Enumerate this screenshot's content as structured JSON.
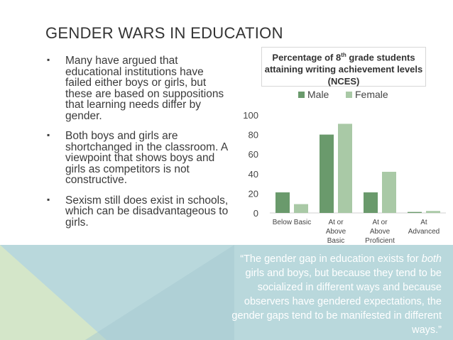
{
  "title": "GENDER WARS IN EDUCATION",
  "bullets": [
    "Many have argued that educational institutions have failed either boys or girls, but these are based on suppositions that learning needs differ by gender.",
    "Both boys and girls are shortchanged in the classroom.  A viewpoint that shows boys and girls as competitors is not constructive.",
    "Sexism still does exist in schools, which can be disadvantageous to girls."
  ],
  "quote": {
    "open": "“The gender gap in education exists for ",
    "emph": "both",
    "rest": " girls and boys, but because they tend to be socialized in different ways and because observers have gendered expectations, the gender gaps tend to be manifested in different ways.”"
  },
  "chart_data": {
    "type": "bar",
    "title_parts": [
      "Percentage of 8",
      "th",
      " grade students attaining writing achievement levels (NCES)"
    ],
    "categories": [
      "Below Basic",
      "At or Above Basic",
      "At or Above Proficient",
      "At Advanced"
    ],
    "category_lines": [
      [
        "Below Basic"
      ],
      [
        "At or",
        "Above",
        "Basic"
      ],
      [
        "At or",
        "Above",
        "Proficient"
      ],
      [
        "At",
        "Advanced"
      ]
    ],
    "series": [
      {
        "name": "Male",
        "values": [
          21,
          80,
          21,
          1
        ],
        "color": "#6a9a6c"
      },
      {
        "name": "Female",
        "values": [
          9,
          91,
          42,
          2
        ],
        "color": "#a9c9a6"
      }
    ],
    "ylim": [
      0,
      100
    ],
    "yticks": [
      0,
      20,
      40,
      60,
      80,
      100
    ],
    "legend_position": "top",
    "grid": false
  }
}
